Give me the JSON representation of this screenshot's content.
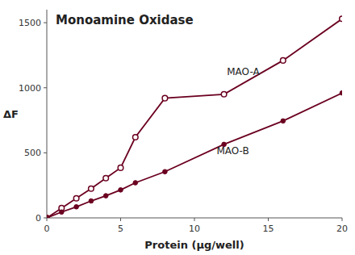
{
  "chart_data": {
    "type": "line",
    "title": "Monoamine Oxidase",
    "x_label": "Protein (μg/well)",
    "y_label": "ΔF",
    "x": [
      0,
      1,
      2,
      3,
      4,
      5,
      6,
      8,
      12,
      16,
      20
    ],
    "series": [
      {
        "name": "MAO-A",
        "color": "#6B0020",
        "marker": "open-circle",
        "values": [
          0,
          75,
          150,
          225,
          305,
          385,
          620,
          920,
          950,
          1210,
          1530
        ]
      },
      {
        "name": "MAO-B",
        "color": "#6B0020",
        "marker": "circle",
        "values": [
          0,
          45,
          85,
          130,
          170,
          215,
          270,
          355,
          565,
          745,
          960
        ]
      }
    ],
    "xlim": [
      0,
      20
    ],
    "ylim": [
      0,
      1600
    ],
    "xticks": [
      0,
      5,
      10,
      15,
      20
    ],
    "yticks": [
      0,
      500,
      1000,
      1500
    ],
    "grid": false
  }
}
